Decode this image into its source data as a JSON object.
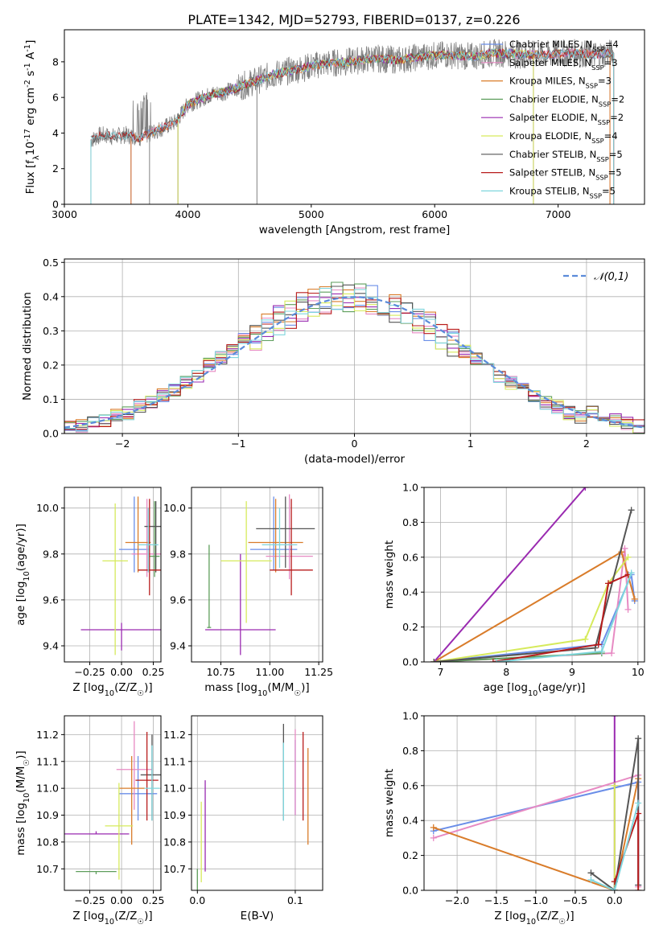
{
  "figure": {
    "title": "PLATE=1342, MJD=52793, FIBERID=0137, z=0.226"
  },
  "colors": [
    "#6a8ee8",
    "#e78ac3",
    "#d97c2a",
    "#5e9e5c",
    "#9a2ab0",
    "#d6ea5c",
    "#555555",
    "#b81c1c",
    "#7fd6dd"
  ],
  "chart_data": [
    {
      "id": "spectrum",
      "type": "line",
      "xlabel": "wavelength [Angstrom, rest frame]",
      "ylabel": "Flux [f$_\\lambda$10$^{-17}$ erg cm$^{-2}$ s$^{-1}$ A$^{-1}$]",
      "xlim": [
        3000,
        7700
      ],
      "ylim": [
        0,
        9.8
      ],
      "xticks": [
        3000,
        4000,
        5000,
        6000,
        7000
      ],
      "yticks": [
        0,
        2,
        4,
        6,
        8
      ],
      "grid": false,
      "legend_position": "top-right",
      "observed": {
        "x": [
          3215,
          3300,
          3400,
          3500,
          3600,
          3700,
          3800,
          3900,
          4000,
          4100,
          4200,
          4300,
          4500,
          4700,
          4900,
          5100,
          5300,
          5500,
          5700,
          5900,
          6100,
          6300,
          6500,
          6700,
          6900,
          7100,
          7300,
          7450
        ],
        "y": [
          3.6,
          3.9,
          3.8,
          3.9,
          3.7,
          4.0,
          4.3,
          4.6,
          5.6,
          5.9,
          6.2,
          6.3,
          6.8,
          7.3,
          7.6,
          7.9,
          8.0,
          8.2,
          8.1,
          8.3,
          8.4,
          8.3,
          8.5,
          8.4,
          8.4,
          8.5,
          8.4,
          8.5
        ]
      },
      "series": [
        {
          "name": "Chabrier MILES, N$_{SSP}$=4",
          "start": 3540,
          "end": 7420
        },
        {
          "name": "Salpeter MILES, N$_{SSP}$=3",
          "start": 3540,
          "end": 7420
        },
        {
          "name": "Kroupa MILES, N$_{SSP}$=3",
          "start": 3540,
          "end": 7420
        },
        {
          "name": "Chabrier ELODIE, N$_{SSP}$=2",
          "start": 3920,
          "end": 6800
        },
        {
          "name": "Salpeter ELODIE, N$_{SSP}$=2",
          "start": 3920,
          "end": 6800
        },
        {
          "name": "Kroupa ELODIE, N$_{SSP}$=4",
          "start": 3920,
          "end": 6800
        },
        {
          "name": "Chabrier STELIB, N$_{SSP}$=5",
          "start": 3215,
          "end": 7450
        },
        {
          "name": "Salpeter STELIB, N$_{SSP}$=5",
          "start": 3215,
          "end": 7450
        },
        {
          "name": "Kroupa STELIB, N$_{SSP}$=5",
          "start": 3215,
          "end": 7450
        }
      ]
    },
    {
      "id": "residuals",
      "type": "line",
      "xlabel": "(data-model)/error",
      "ylabel": "Normed distribution",
      "xlim": [
        -2.5,
        2.5
      ],
      "ylim": [
        0,
        0.51
      ],
      "xticks": [
        -2,
        -1,
        0,
        1,
        2
      ],
      "yticks": [
        0.0,
        0.1,
        0.2,
        0.3,
        0.4,
        0.5
      ],
      "grid": true,
      "legend_position": "top-right",
      "gaussian": {
        "name": "$\\mathcal{N}(0,1)$",
        "mean": 0,
        "sigma": 1
      },
      "bin_width": 0.1,
      "x": [
        -2.45,
        -2.35,
        -2.25,
        -2.15,
        -2.05,
        -1.95,
        -1.85,
        -1.75,
        -1.65,
        -1.55,
        -1.45,
        -1.35,
        -1.25,
        -1.15,
        -1.05,
        -0.95,
        -0.85,
        -0.75,
        -0.65,
        -0.55,
        -0.45,
        -0.35,
        -0.25,
        -0.15,
        -0.05,
        0.05,
        0.15,
        0.25,
        0.35,
        0.45,
        0.55,
        0.65,
        0.75,
        0.85,
        0.95,
        1.05,
        1.15,
        1.25,
        1.35,
        1.45,
        1.55,
        1.65,
        1.75,
        1.85,
        1.95,
        2.05,
        2.15,
        2.25,
        2.35,
        2.45
      ],
      "base": [
        0.02,
        0.025,
        0.03,
        0.04,
        0.05,
        0.06,
        0.08,
        0.09,
        0.11,
        0.13,
        0.15,
        0.17,
        0.2,
        0.22,
        0.24,
        0.26,
        0.28,
        0.31,
        0.33,
        0.35,
        0.37,
        0.38,
        0.39,
        0.4,
        0.4,
        0.4,
        0.39,
        0.38,
        0.37,
        0.35,
        0.33,
        0.31,
        0.28,
        0.26,
        0.24,
        0.22,
        0.2,
        0.17,
        0.15,
        0.13,
        0.11,
        0.09,
        0.08,
        0.06,
        0.05,
        0.06,
        0.05,
        0.04,
        0.03,
        0.02
      ]
    },
    {
      "id": "age_vs_Z",
      "type": "errorbar",
      "xlabel": "Z [log$_{10}$(Z/Z$_\\odot$)]",
      "ylabel": "age  [log$_{10}$(age/yr)]",
      "xlim": [
        -0.45,
        0.31
      ],
      "ylim": [
        9.33,
        10.09
      ],
      "xticks": [
        -0.25,
        0.0,
        0.25
      ],
      "yticks": [
        9.4,
        9.6,
        9.8,
        10.0
      ],
      "grid": true
    },
    {
      "id": "age_vs_mass",
      "type": "errorbar",
      "xlabel": "mass [log$_{10}$(M/M$_\\odot$)]",
      "ylabel": "",
      "xlim": [
        10.6,
        11.27
      ],
      "ylim": [
        9.33,
        10.09
      ],
      "xticks": [
        10.75,
        11.0,
        11.25
      ],
      "yticks": [
        9.4,
        9.6,
        9.8,
        10.0
      ],
      "grid": true
    },
    {
      "id": "weight_vs_age",
      "type": "line",
      "xlabel": "age  [log$_{10}$(age/yr)]",
      "ylabel": "mass weight",
      "xlim": [
        6.75,
        10.1
      ],
      "ylim": [
        0,
        1
      ],
      "xticks": [
        7,
        8,
        9,
        10
      ],
      "yticks": [
        0.0,
        0.2,
        0.4,
        0.6,
        0.8,
        1.0
      ],
      "grid": true,
      "series": [
        {
          "x": [
            6.9,
            9.45,
            9.9,
            9.95
          ],
          "y": [
            0,
            0.1,
            0.5,
            0.35
          ]
        },
        {
          "x": [
            6.9,
            9.6,
            9.8,
            9.85
          ],
          "y": [
            0,
            0.05,
            0.65,
            0.3
          ]
        },
        {
          "x": [
            6.9,
            9.75,
            9.95
          ],
          "y": [
            0,
            0.63,
            0.36
          ]
        },
        {
          "x": [
            6.9,
            9.45
          ],
          "y": [
            0,
            0.05
          ]
        },
        {
          "x": [
            6.9,
            9.2
          ],
          "y": [
            0,
            1.0
          ]
        },
        {
          "x": [
            6.9,
            9.2,
            9.55,
            9.85
          ],
          "y": [
            0,
            0.13,
            0.45,
            0.6
          ]
        },
        {
          "x": [
            6.9,
            9.35,
            9.9
          ],
          "y": [
            0,
            0.08,
            0.87
          ]
        },
        {
          "x": [
            7.8,
            9.4,
            9.55,
            9.85
          ],
          "y": [
            0,
            0.1,
            0.45,
            0.5
          ]
        },
        {
          "x": [
            7.85,
            9.45,
            9.9
          ],
          "y": [
            0,
            0.06,
            0.51
          ]
        }
      ]
    },
    {
      "id": "mass_vs_Z",
      "type": "errorbar",
      "xlabel": "Z [log$_{10}$(Z/Z$_\\odot$)]",
      "ylabel": "mass [log$_{10}$(M/M$_\\odot$)]",
      "xlim": [
        -0.45,
        0.31
      ],
      "ylim": [
        10.62,
        11.27
      ],
      "xticks": [
        -0.25,
        0.0,
        0.25
      ],
      "yticks": [
        10.7,
        10.8,
        10.9,
        11.0,
        11.1,
        11.2
      ],
      "grid": true
    },
    {
      "id": "mass_vs_ebv",
      "type": "errorbar",
      "xlabel": "E(B-V)",
      "ylabel": "",
      "xlim": [
        -0.006,
        0.128
      ],
      "ylim": [
        10.62,
        11.27
      ],
      "xticks": [
        0.0,
        0.1
      ],
      "yticks": [
        10.7,
        10.8,
        10.9,
        11.0,
        11.1,
        11.2
      ],
      "grid": true
    },
    {
      "id": "weight_vs_Z",
      "type": "line",
      "xlabel": "Z [log$_{10}$(Z/Z$_\\odot$)]",
      "ylabel": "mass weight",
      "xlim": [
        -2.42,
        0.38
      ],
      "ylim": [
        0,
        1
      ],
      "xticks": [
        -2.0,
        -1.5,
        -1.0,
        -0.5,
        0.0
      ],
      "yticks": [
        0.0,
        0.2,
        0.4,
        0.6,
        0.8,
        1.0
      ],
      "grid": true,
      "series": [
        {
          "x": [
            -2.3,
            0.3,
            0.3
          ],
          "y": [
            0.34,
            0.62,
            0.03
          ]
        },
        {
          "x": [
            -2.3,
            0.3,
            0.3
          ],
          "y": [
            0.3,
            0.66,
            0.02
          ]
        },
        {
          "x": [
            -2.3,
            0.0,
            0.3
          ],
          "y": [
            0.36,
            0.0,
            0.64
          ]
        },
        {
          "x": [
            0.0,
            0.0
          ],
          "y": [
            0.0,
            0.05
          ]
        },
        {
          "x": [
            0.0,
            0.0
          ],
          "y": [
            0.0,
            1.0
          ]
        },
        {
          "x": [
            0.0,
            0.0
          ],
          "y": [
            0.0,
            0.6
          ]
        },
        {
          "x": [
            -0.3,
            0.0,
            0.3,
            0.3
          ],
          "y": [
            0.1,
            0.0,
            0.87,
            0.03
          ]
        },
        {
          "x": [
            0.0,
            0.3,
            0.3
          ],
          "y": [
            0.05,
            0.44,
            0.0
          ]
        },
        {
          "x": [
            -0.3,
            0.0,
            0.3
          ],
          "y": [
            0.06,
            0.0,
            0.5
          ]
        }
      ]
    }
  ]
}
